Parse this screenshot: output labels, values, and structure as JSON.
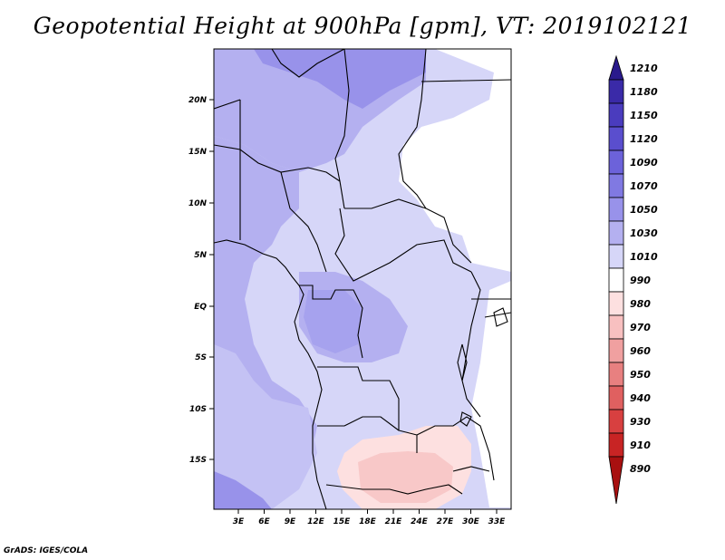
{
  "title": "Geopotential Height at 900hPa [gpm], VT: 2019102121",
  "footer": "GrADS: IGES/COLA",
  "map": {
    "lat_labels": [
      "20N",
      "15N",
      "10N",
      "5N",
      "EQ",
      "5S",
      "10S",
      "15S"
    ],
    "lon_labels": [
      "3E",
      "6E",
      "9E",
      "12E",
      "15E",
      "18E",
      "21E",
      "24E",
      "27E",
      "30E",
      "33E"
    ]
  },
  "colorbar": {
    "levels": [
      "1210",
      "1180",
      "1150",
      "1120",
      "1090",
      "1070",
      "1050",
      "1030",
      "1010",
      "990",
      "980",
      "970",
      "960",
      "950",
      "940",
      "930",
      "910",
      "890"
    ],
    "colors": [
      "#2a1a8c",
      "#3a2aa8",
      "#4a3cbe",
      "#5a4ece",
      "#6c62da",
      "#8079e2",
      "#9892ea",
      "#b4b0f0",
      "#d6d6f8",
      "#ffffff",
      "#fde0e0",
      "#f8c0c0",
      "#f0a0a0",
      "#e88080",
      "#e06060",
      "#d84040",
      "#c82424",
      "#a81010"
    ]
  }
}
